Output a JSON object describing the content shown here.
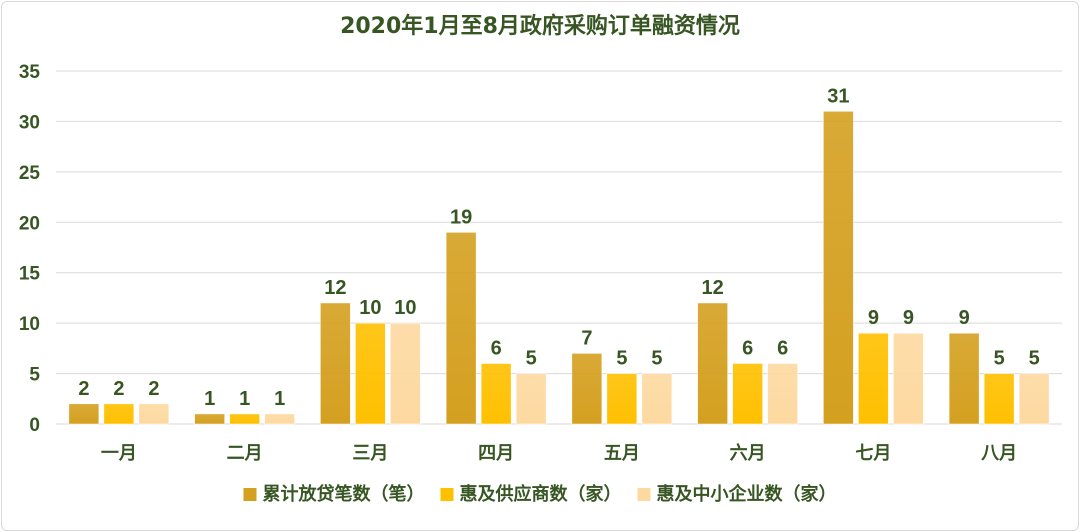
{
  "chart_data": {
    "type": "bar",
    "title": "2020年1月至8月政府采购订单融资情况",
    "categories": [
      "一月",
      "二月",
      "三月",
      "四月",
      "五月",
      "六月",
      "七月",
      "八月"
    ],
    "series": [
      {
        "name": "累计放贷笔数（笔）",
        "values": [
          2,
          1,
          12,
          19,
          7,
          12,
          31,
          9
        ],
        "color": "#D4A020"
      },
      {
        "name": "惠及供应商数（家）",
        "values": [
          2,
          1,
          10,
          6,
          5,
          6,
          9,
          5
        ],
        "color": "#FFC000"
      },
      {
        "name": "惠及中小企业数（家）",
        "values": [
          2,
          1,
          10,
          5,
          5,
          6,
          9,
          5
        ],
        "color": "#FDD9A0"
      }
    ],
    "ylim": [
      0,
      35
    ],
    "yticks": [
      0,
      5,
      10,
      15,
      20,
      25,
      30,
      35
    ],
    "grid": true,
    "data_labels": true,
    "legend_position": "bottom"
  }
}
